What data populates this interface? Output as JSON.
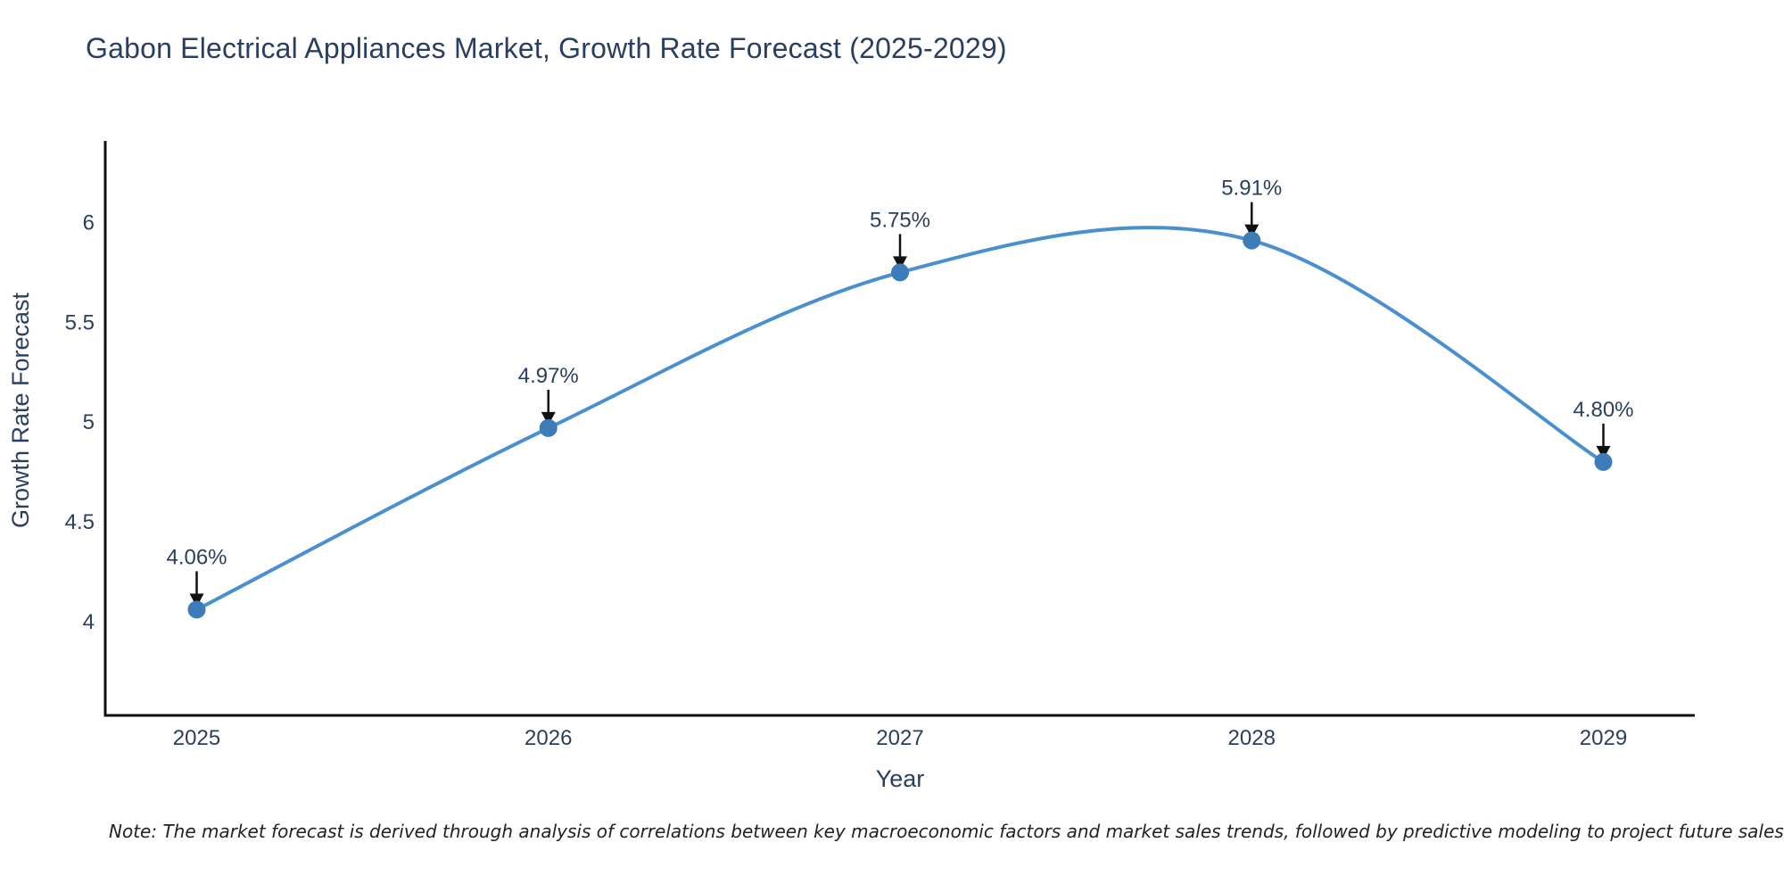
{
  "title": "Gabon Electrical Appliances Market, Growth Rate Forecast (2025-2029)",
  "note": "Note: The market forecast is derived through analysis of correlations between key macroeconomic factors and market sales trends, followed by predictive modeling to project future sales",
  "chart_data": {
    "type": "line",
    "title": "Gabon Electrical Appliances Market, Growth Rate Forecast (2025-2029)",
    "xlabel": "Year",
    "ylabel": "Growth Rate Forecast",
    "x": [
      2025,
      2026,
      2027,
      2028,
      2029
    ],
    "y": [
      4.06,
      4.97,
      5.75,
      5.91,
      4.8
    ],
    "point_labels": [
      "4.06%",
      "4.97%",
      "5.75%",
      "5.91%",
      "4.80%"
    ],
    "xticks": [
      "2025",
      "2026",
      "2027",
      "2028",
      "2029"
    ],
    "yticks": [
      4,
      4.5,
      5,
      5.5,
      6
    ],
    "ytick_labels": [
      "4",
      "4.5",
      "5",
      "5.5",
      "6"
    ],
    "xlim": [
      2024.74,
      2029.26
    ],
    "ylim": [
      3.53,
      6.4
    ],
    "grid": false,
    "legend": "none",
    "line_shape": "spline",
    "colors": {
      "line": "#4a90d0",
      "marker": "#3e7cb9",
      "text": "#2a3f5f",
      "axis_line": "#111111",
      "annotation_arrow": "#111111",
      "note_text": "#222222",
      "background": "#ffffff"
    }
  }
}
